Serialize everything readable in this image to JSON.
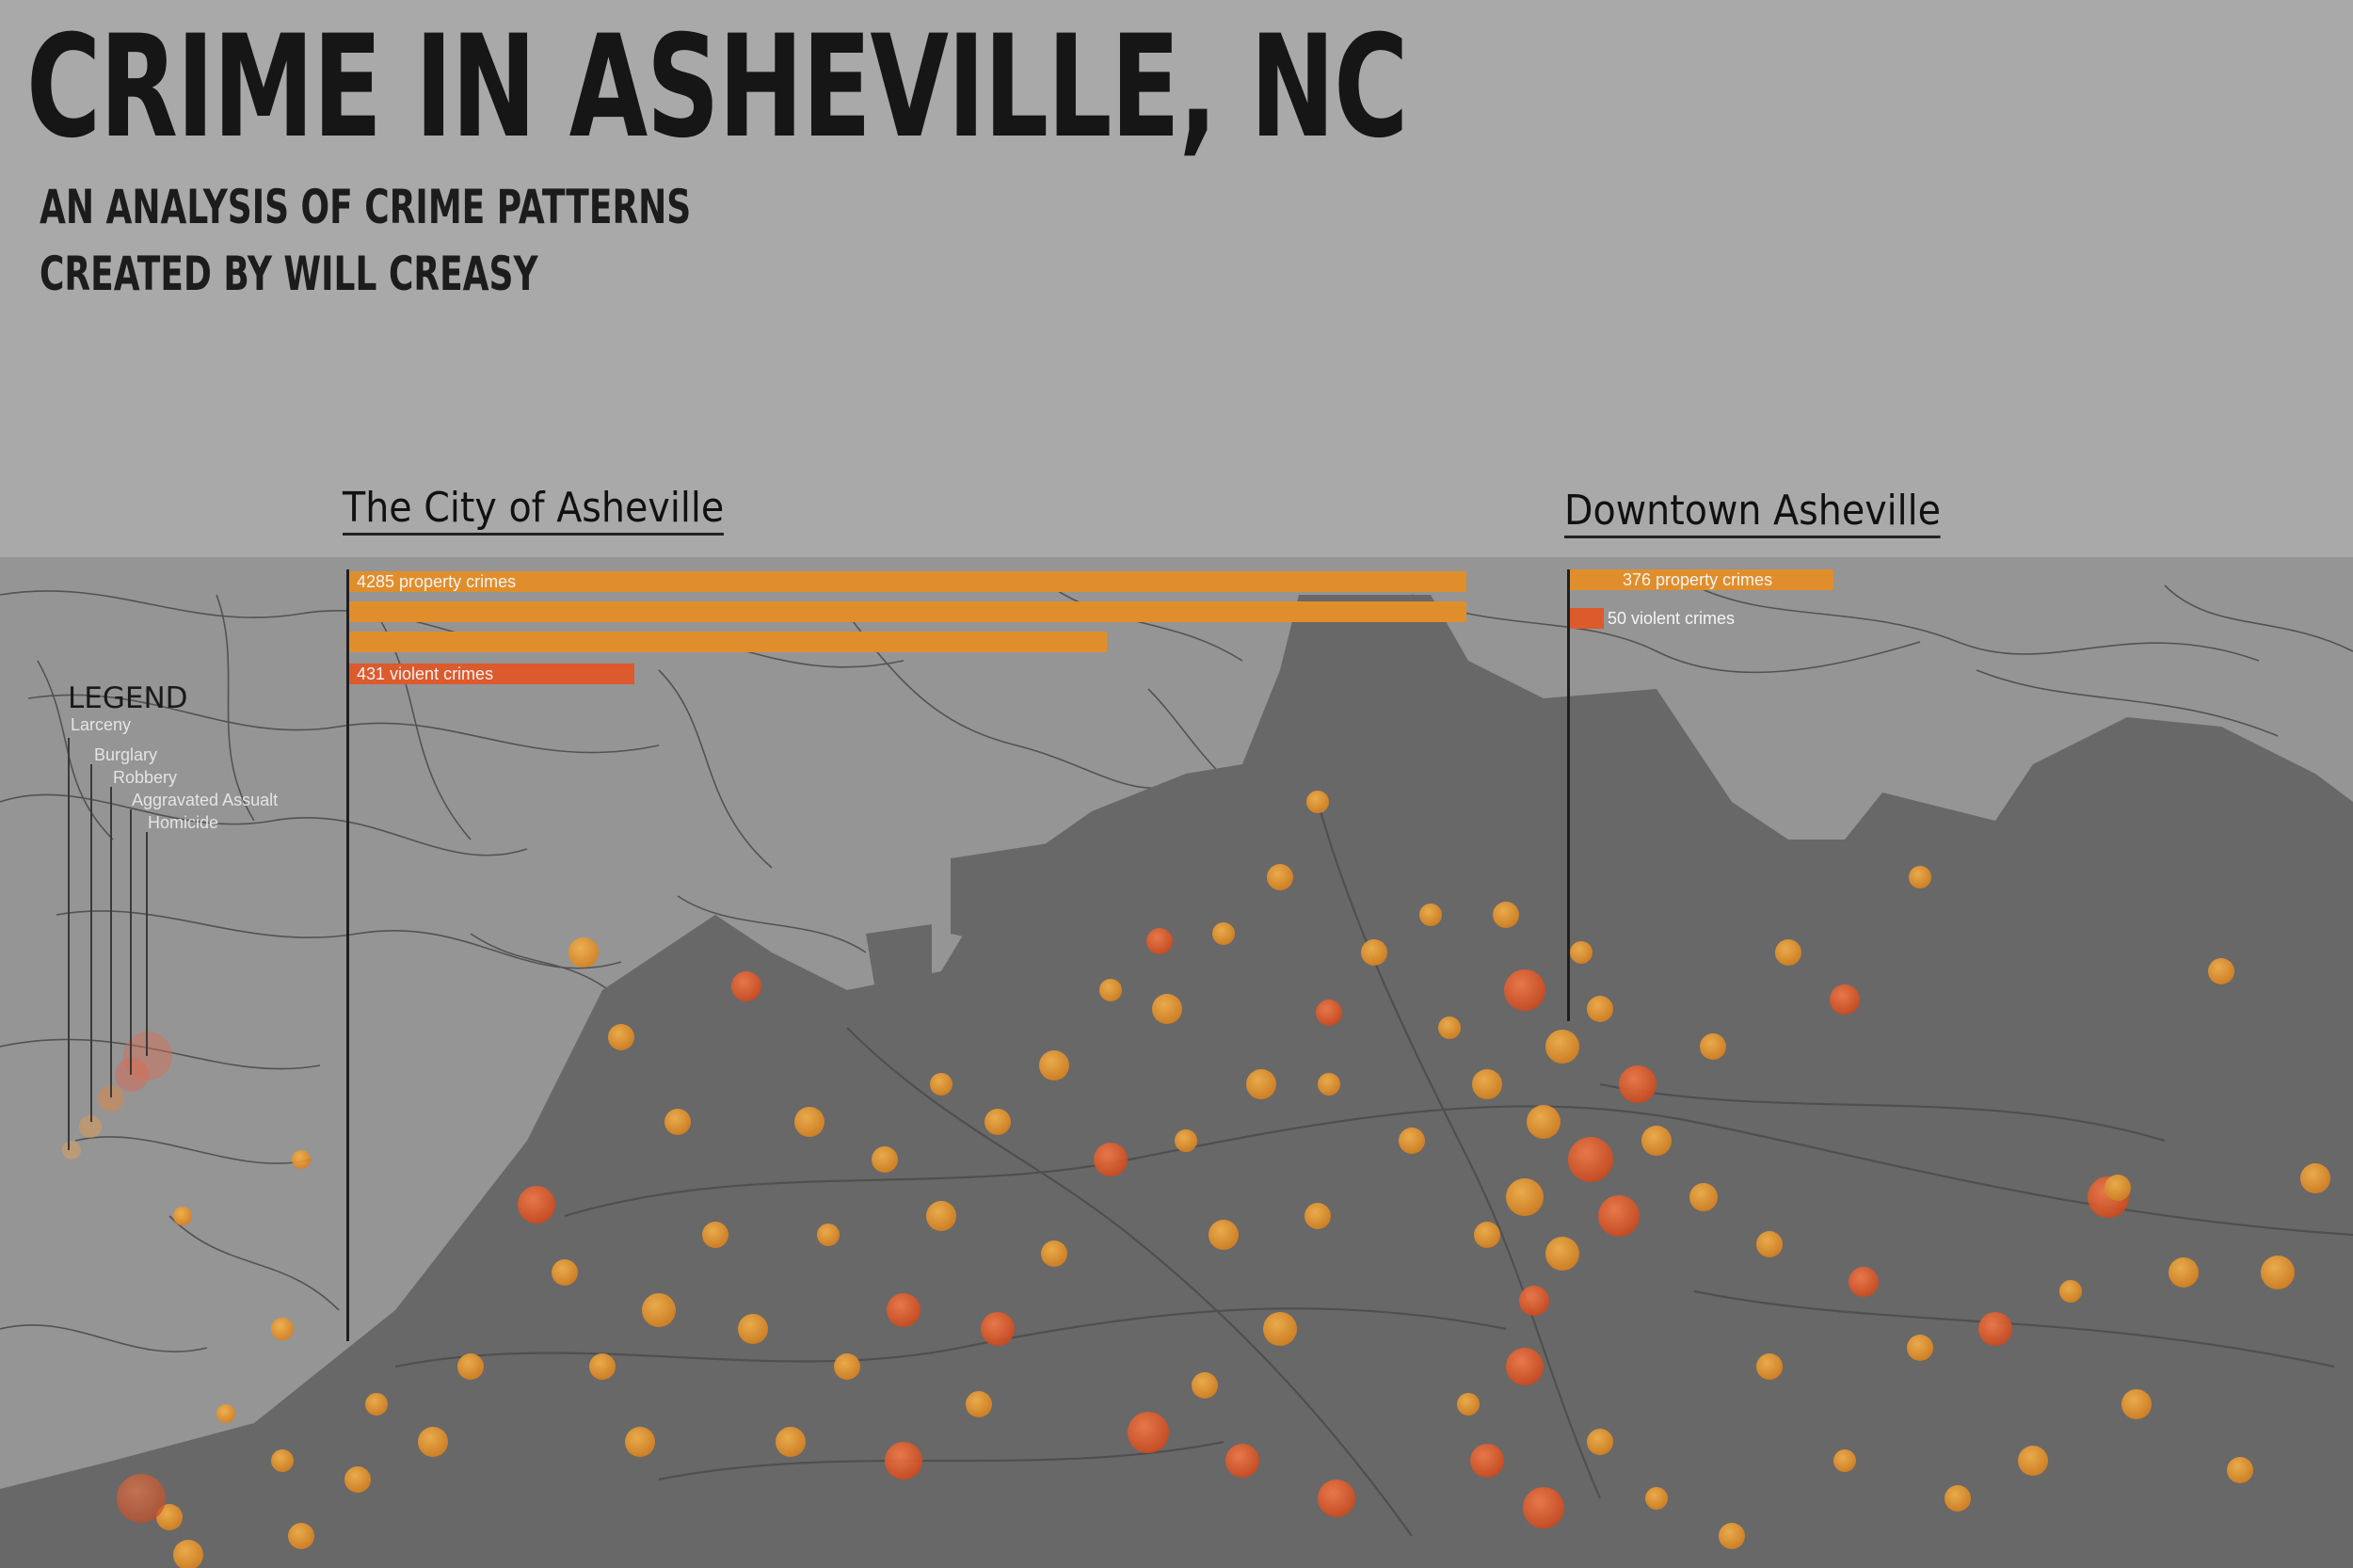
{
  "header": {
    "title": "CRIME IN ASHEVILLE, NC",
    "subtitle": "AN ANALYSIS OF CRIME PATTERNS",
    "credit": "CREATED BY WILL CREASY"
  },
  "sections": {
    "city": {
      "title": "The City of Asheville",
      "property_label": "4285 property crimes",
      "violent_label": "431 violent crimes",
      "property_crimes": 4285,
      "violent_crimes": 431
    },
    "downtown": {
      "title": "Downtown Asheville",
      "property_label": "376 property crimes",
      "violent_label": "50 violent crimes",
      "property_crimes": 376,
      "violent_crimes": 50
    }
  },
  "legend": {
    "title": "LEGEND",
    "items": [
      "Larceny",
      "Burglary",
      "Robbery",
      "Aggravated Assualt",
      "Homicide"
    ]
  },
  "colors": {
    "property": "#e08e2c",
    "violent": "#dd5a2c",
    "dot_light": "#e7962a",
    "dot_dark": "#e35a24",
    "land": "#6c6c6c",
    "terrain": "#959595",
    "header_bg": "#a9a9a9"
  }
}
